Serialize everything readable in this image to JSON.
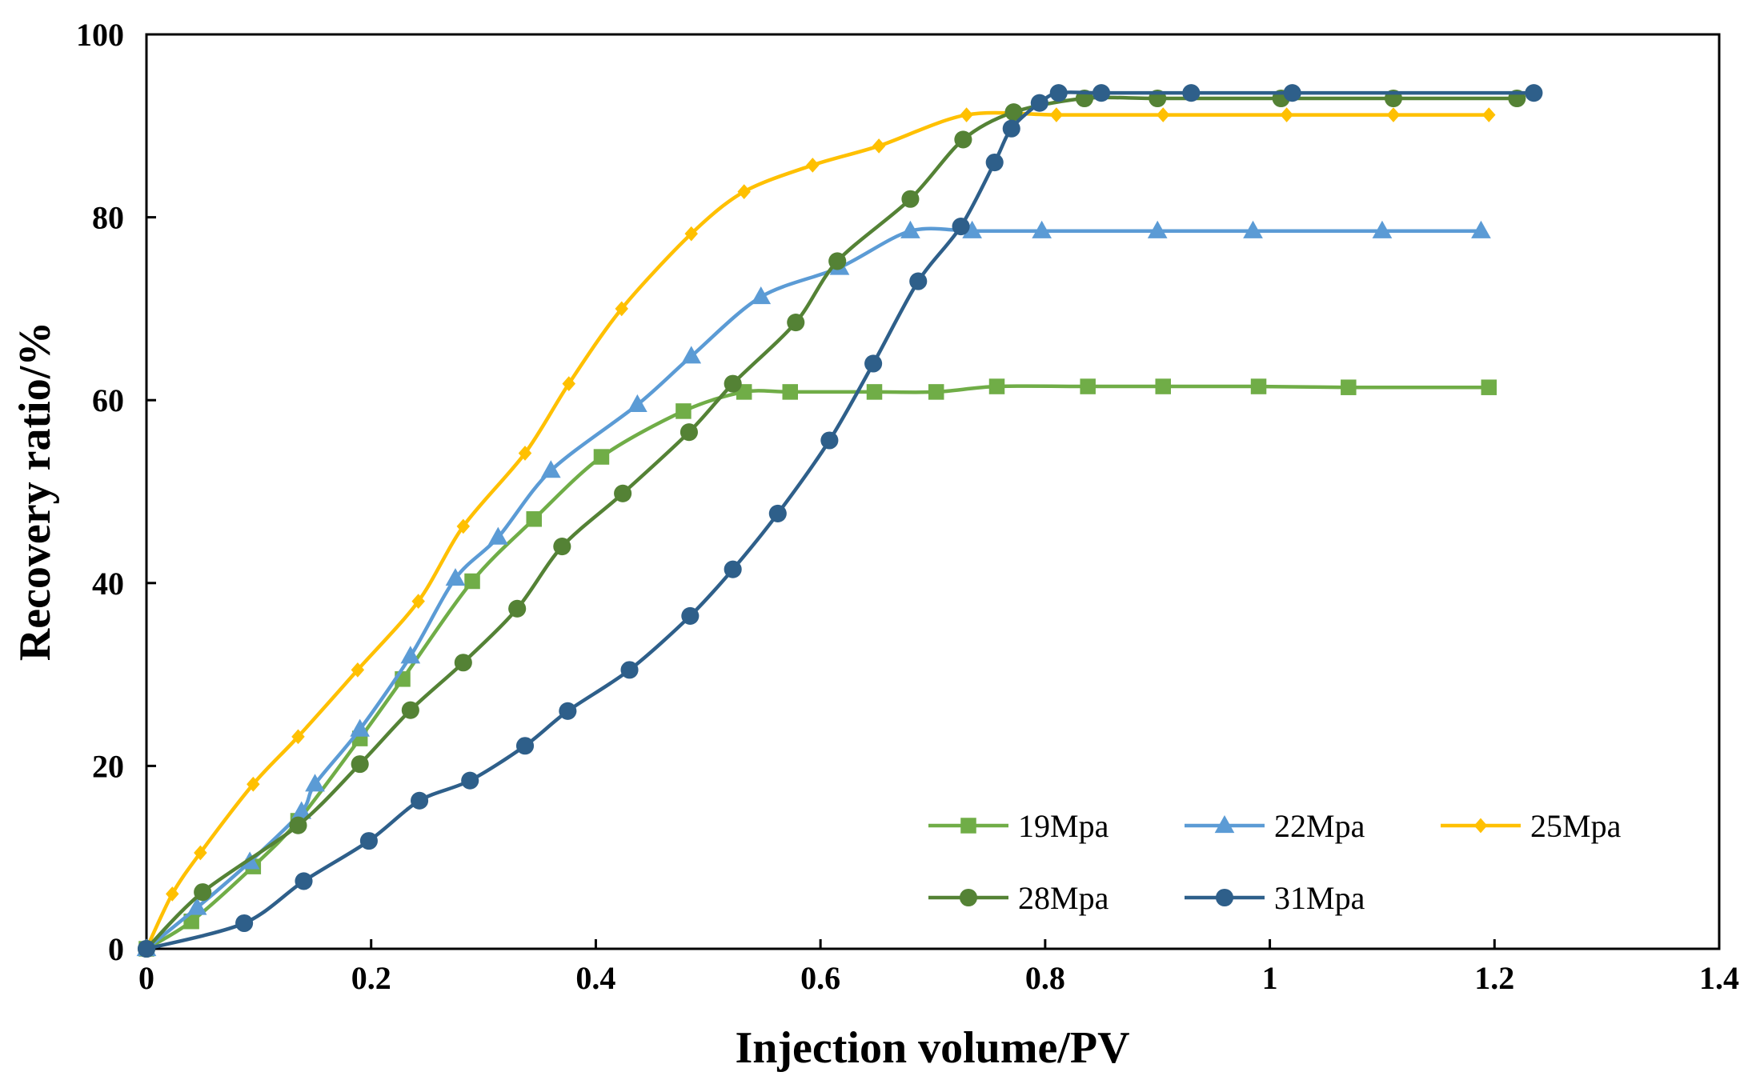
{
  "chart_data": {
    "type": "line",
    "title": "",
    "xlabel": "Injection volume/PV",
    "ylabel": "Recovery ratio/%",
    "xlim": [
      0,
      1.4
    ],
    "ylim": [
      0,
      100
    ],
    "xticks": [
      0,
      0.2,
      0.4,
      0.6,
      0.8,
      1,
      1.2,
      1.4
    ],
    "xtick_labels": [
      "0",
      "0.2",
      "0.4",
      "0.6",
      "0.8",
      "1",
      "1.2",
      "1.4"
    ],
    "yticks": [
      0,
      20,
      40,
      60,
      80,
      100
    ],
    "ytick_labels": [
      "0",
      "20",
      "40",
      "60",
      "80",
      "100"
    ],
    "grid": false,
    "legend_position": "bottom-right",
    "series": [
      {
        "name": "19Mpa",
        "color": "#70ad47",
        "marker": "square",
        "x": [
          0,
          0.04,
          0.095,
          0.135,
          0.19,
          0.228,
          0.29,
          0.345,
          0.405,
          0.478,
          0.532,
          0.573,
          0.648,
          0.703,
          0.757,
          0.838,
          0.905,
          0.99,
          1.07,
          1.195
        ],
        "y": [
          0,
          3,
          9,
          14,
          23,
          29.5,
          40.2,
          47,
          53.8,
          58.8,
          60.9,
          60.9,
          60.9,
          60.9,
          61.5,
          61.5,
          61.5,
          61.5,
          61.4,
          61.4
        ]
      },
      {
        "name": "22Mpa",
        "color": "#5b9bd5",
        "marker": "triangle",
        "x": [
          0,
          0.045,
          0.092,
          0.138,
          0.15,
          0.19,
          0.235,
          0.275,
          0.313,
          0.36,
          0.437,
          0.485,
          0.547,
          0.617,
          0.68,
          0.735,
          0.797,
          0.9,
          0.985,
          1.1,
          1.188
        ],
        "y": [
          0,
          4.5,
          9.5,
          15,
          18,
          24,
          32,
          40.5,
          45,
          52.3,
          59.5,
          64.8,
          71.3,
          74.5,
          78.5,
          78.5,
          78.5,
          78.5,
          78.5,
          78.5,
          78.5
        ]
      },
      {
        "name": "25Mpa",
        "color": "#ffc000",
        "marker": "diamond",
        "x": [
          0,
          0.023,
          0.048,
          0.095,
          0.135,
          0.188,
          0.242,
          0.282,
          0.337,
          0.376,
          0.423,
          0.485,
          0.532,
          0.593,
          0.652,
          0.73,
          0.81,
          0.905,
          1.015,
          1.11,
          1.195
        ],
        "y": [
          0,
          6,
          10.5,
          18,
          23.2,
          30.5,
          38,
          46.2,
          54.2,
          61.8,
          70,
          78.2,
          82.8,
          85.7,
          87.8,
          91.2,
          91.2,
          91.2,
          91.2,
          91.2,
          91.2
        ]
      },
      {
        "name": "28Mpa",
        "color": "#548235",
        "marker": "circle",
        "x": [
          0,
          0.05,
          0.135,
          0.19,
          0.235,
          0.282,
          0.33,
          0.37,
          0.424,
          0.483,
          0.522,
          0.578,
          0.615,
          0.68,
          0.727,
          0.772,
          0.835,
          0.9,
          1.01,
          1.11,
          1.22
        ],
        "y": [
          0,
          6.2,
          13.5,
          20.2,
          26.1,
          31.3,
          37.2,
          44,
          49.8,
          56.5,
          61.8,
          68.5,
          75.2,
          82,
          88.5,
          91.5,
          93,
          93,
          93,
          93,
          93
        ]
      },
      {
        "name": "31Mpa",
        "color": "#2e5f8a",
        "marker": "circle",
        "x": [
          0,
          0.087,
          0.14,
          0.198,
          0.243,
          0.288,
          0.337,
          0.375,
          0.43,
          0.484,
          0.522,
          0.562,
          0.608,
          0.647,
          0.687,
          0.725,
          0.755,
          0.77,
          0.795,
          0.812,
          0.85,
          0.93,
          1.02,
          1.235
        ],
        "y": [
          0,
          2.8,
          7.4,
          11.8,
          16.2,
          18.4,
          22.2,
          26,
          30.5,
          36.4,
          41.5,
          47.6,
          55.6,
          64,
          73,
          79,
          86,
          89.7,
          92.5,
          93.6,
          93.6,
          93.6,
          93.6,
          93.6
        ]
      }
    ]
  }
}
